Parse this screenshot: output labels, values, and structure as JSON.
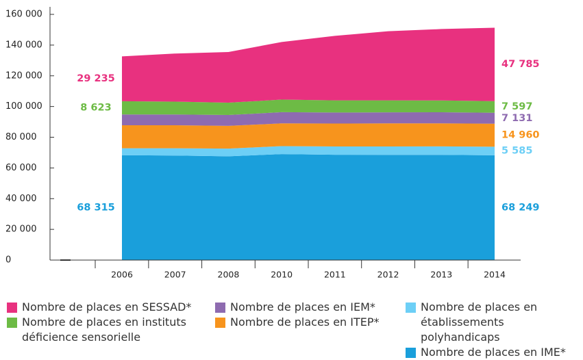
{
  "chart_data": {
    "type": "stacked-area",
    "categories": [
      "2006",
      "2007",
      "2008",
      "2010",
      "2011",
      "2012",
      "2013",
      "2014"
    ],
    "ylim": [
      0,
      160000
    ],
    "yticks": [
      0,
      {
        "value": 20000,
        "label": "20 000"
      },
      {
        "value": 40000,
        "label": "40 000"
      },
      {
        "value": 60000,
        "label": "60 000"
      },
      {
        "value": 80000,
        "label": "80 000"
      },
      {
        "value": 100000,
        "label": "100 000"
      },
      {
        "value": 120000,
        "label": "120 000"
      },
      {
        "value": 140000,
        "label": "140 000"
      },
      {
        "value": 160000,
        "label": "160 000"
      }
    ],
    "series": [
      {
        "name": "Nombre de places en IME*",
        "color": "#1a9fdb",
        "values": [
          68315,
          68100,
          67600,
          69000,
          68600,
          68500,
          68500,
          68249
        ],
        "value_labels": [
          "68 315",
          null,
          null,
          null,
          null,
          null,
          null,
          "68 249"
        ]
      },
      {
        "name": "Nombre de places en établissements polyhandicaps",
        "color": "#6dcff6",
        "values": [
          4500,
          4700,
          5000,
          5200,
          5400,
          5500,
          5550,
          5585
        ],
        "value_labels": [
          null,
          null,
          null,
          null,
          null,
          null,
          null,
          "5 585"
        ]
      },
      {
        "name": "Nombre de places en ITEP*",
        "color": "#f7941d",
        "values": [
          15000,
          15000,
          14800,
          14800,
          14900,
          15000,
          15000,
          14960
        ],
        "value_labels": [
          null,
          null,
          null,
          null,
          null,
          null,
          null,
          "14 960"
        ]
      },
      {
        "name": "Nombre de places en IEM*",
        "color": "#8e6bb0",
        "values": [
          7000,
          7000,
          7100,
          7300,
          7200,
          7200,
          7200,
          7131
        ],
        "value_labels": [
          null,
          null,
          null,
          null,
          null,
          null,
          null,
          "7 131"
        ]
      },
      {
        "name": "Nombre de places en instituts déficience sensorielle",
        "color": "#6dbb45",
        "values": [
          8623,
          8400,
          8000,
          8200,
          7900,
          7800,
          7700,
          7597
        ],
        "value_labels": [
          "8 623",
          null,
          null,
          null,
          null,
          null,
          null,
          "7 597"
        ]
      },
      {
        "name": "Nombre de places en SESSAD*",
        "color": "#e8317f",
        "values": [
          29235,
          31300,
          33000,
          37500,
          42000,
          45000,
          46500,
          47785
        ],
        "value_labels": [
          "29 235",
          null,
          null,
          null,
          null,
          null,
          null,
          "47 785"
        ]
      }
    ]
  }
}
